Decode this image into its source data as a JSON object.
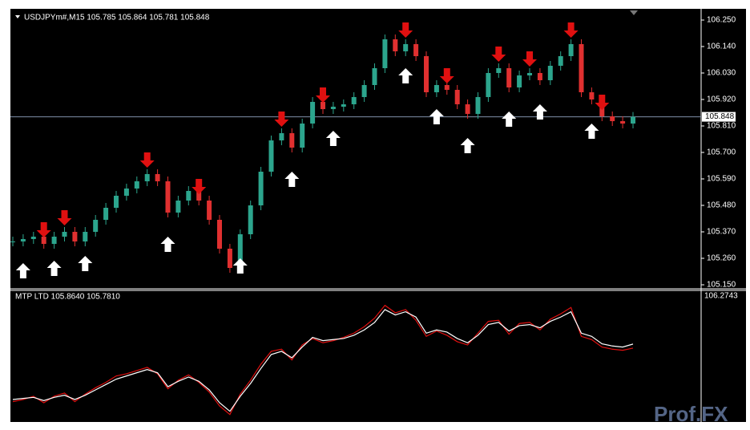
{
  "main_panel": {
    "header": "USDJPYm#,M15  105.785 105.864 105.781 105.848",
    "price_ticks": [
      "106.250",
      "106.140",
      "106.030",
      "105.920",
      "105.810",
      "105.700",
      "105.590",
      "105.480",
      "105.370",
      "105.260",
      "105.150"
    ],
    "current_price": "105.848",
    "closes": [
      105.33,
      105.34,
      105.35,
      105.32,
      105.35,
      105.37,
      105.33,
      105.37,
      105.42,
      105.47,
      105.52,
      105.55,
      105.58,
      105.61,
      105.58,
      105.45,
      105.5,
      105.54,
      105.5,
      105.42,
      105.3,
      105.22,
      105.36,
      105.48,
      105.62,
      105.75,
      105.78,
      105.72,
      105.82,
      105.91,
      105.88,
      105.89,
      105.9,
      105.93,
      105.98,
      106.05,
      106.17,
      106.12,
      106.15,
      106.1,
      105.95,
      105.98,
      105.96,
      105.9,
      105.86,
      105.93,
      106.03,
      106.05,
      105.97,
      106.02,
      106.03,
      106.0,
      106.06,
      106.1,
      106.15,
      105.95,
      105.92,
      105.85,
      105.83,
      105.82,
      105.848
    ],
    "up_signals": [
      1,
      4,
      7,
      15,
      22,
      27,
      31,
      38,
      41,
      44,
      48,
      51,
      56
    ],
    "down_signals": [
      3,
      5,
      13,
      18,
      26,
      30,
      38,
      42,
      47,
      50,
      54,
      57
    ]
  },
  "indicator_panel": {
    "header": "MTP LTD 105.8640 105.7810",
    "top_label": "106.2743",
    "red_line": [
      105.31,
      105.33,
      105.36,
      105.3,
      105.36,
      105.39,
      105.31,
      105.38,
      105.44,
      105.49,
      105.55,
      105.57,
      105.6,
      105.63,
      105.57,
      105.43,
      105.51,
      105.56,
      105.49,
      105.4,
      105.27,
      105.19,
      105.38,
      105.51,
      105.66,
      105.78,
      105.8,
      105.7,
      105.84,
      105.9,
      105.86,
      105.88,
      105.91,
      105.95,
      106.01,
      106.09,
      106.21,
      106.14,
      106.17,
      106.07,
      105.92,
      105.97,
      105.93,
      105.87,
      105.84,
      105.95,
      106.06,
      106.07,
      105.94,
      106.04,
      106.05,
      105.98,
      106.08,
      106.13,
      106.19,
      105.92,
      105.89,
      105.82,
      105.8,
      105.79,
      105.81
    ]
  },
  "watermark": "Prof.FX"
}
